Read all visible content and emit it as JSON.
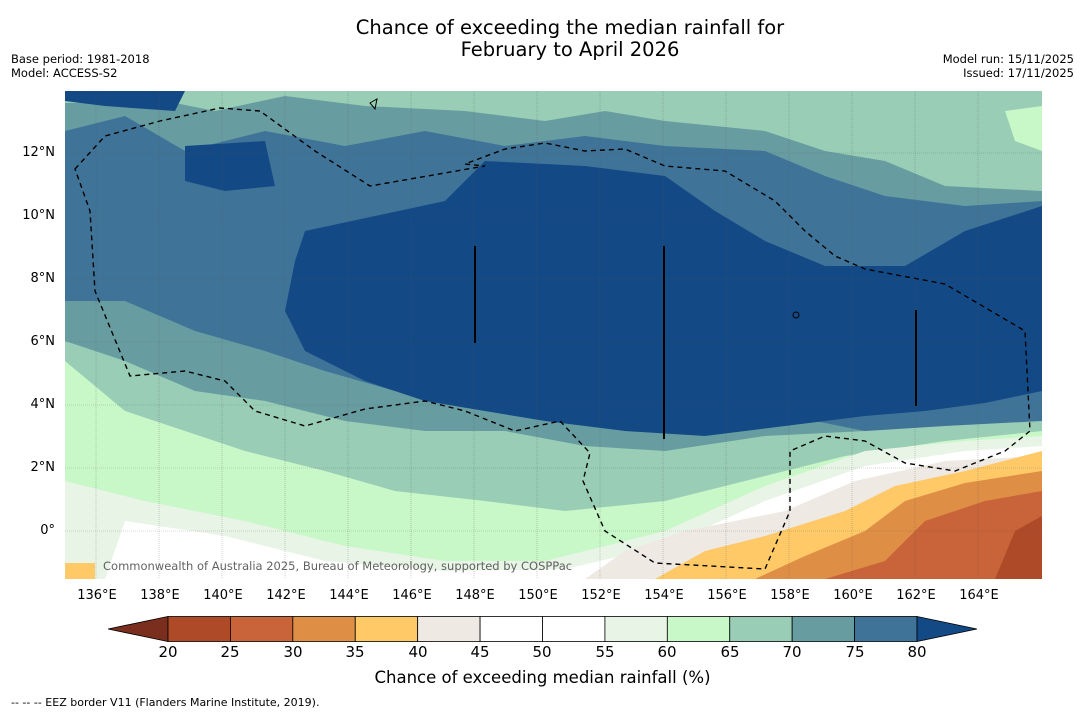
{
  "title": {
    "line1": "Chance of exceeding the median rainfall for",
    "line2": "February to April 2026"
  },
  "meta_left": {
    "base_period": "Base period: 1981-2018",
    "model": "Model: ACCESS-S2"
  },
  "meta_right": {
    "model_run": "Model run: 15/11/2025",
    "issued": "Issued: 17/11/2025"
  },
  "map": {
    "lat_labels": [
      "12°N",
      "10°N",
      "8°N",
      "6°N",
      "4°N",
      "2°N",
      "0°"
    ],
    "lon_labels": [
      "136°E",
      "138°E",
      "140°E",
      "142°E",
      "144°E",
      "146°E",
      "148°E",
      "150°E",
      "152°E",
      "154°E",
      "156°E",
      "158°E",
      "160°E",
      "162°E",
      "164°E"
    ],
    "lon_range": [
      135,
      166
    ],
    "lat_range": [
      -1.5,
      14
    ],
    "credit": "Commonwealth of Australia 2025, Bureau of Meteorology, supported by COSPPac"
  },
  "colorbar": {
    "ticks": [
      "20",
      "25",
      "30",
      "35",
      "40",
      "45",
      "50",
      "55",
      "60",
      "65",
      "70",
      "75",
      "80"
    ],
    "colors": [
      "#7a2f1e",
      "#ae4a28",
      "#c9633a",
      "#de8f45",
      "#fec966",
      "#efe9e3",
      "#ffffff",
      "#ffffff",
      "#e8f4e6",
      "#c8f7c8",
      "#99cdb5",
      "#679da1",
      "#3f7498",
      "#134a86"
    ],
    "label": "Chance of exceeding median rainfall (%)"
  },
  "footnote": "--  --  -- EEZ border V11 (Flanders Marine Institute, 2019)."
}
